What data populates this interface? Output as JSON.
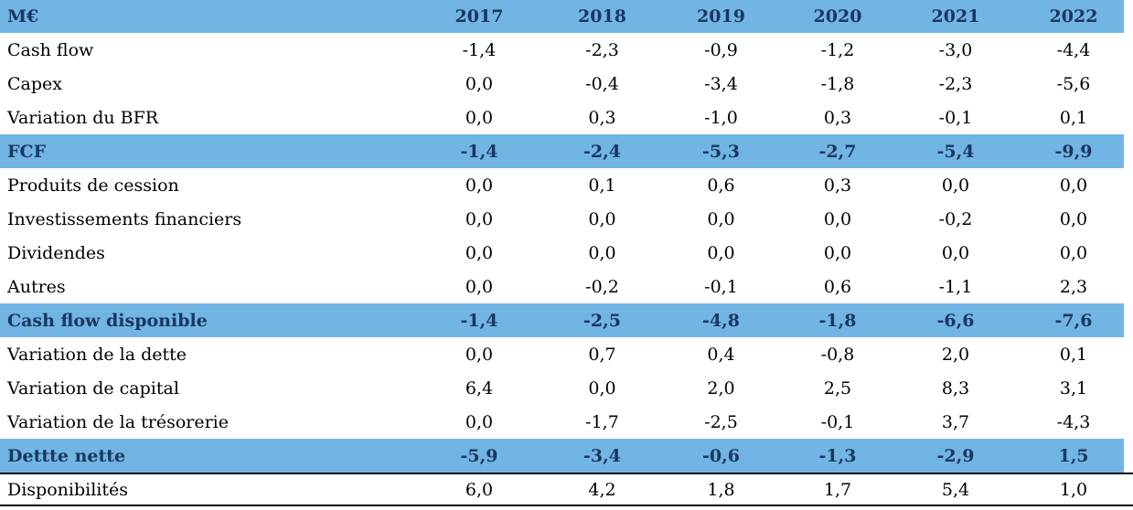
{
  "colors": {
    "band": "#70b5e3",
    "band_text": "#1c3661",
    "rule": "#000000"
  },
  "table": {
    "unit_header": "M€",
    "years": [
      "2017",
      "2018",
      "2019",
      "2020",
      "2021",
      "2022"
    ],
    "rows": [
      {
        "label": "Cash flow",
        "values": [
          "-1,4",
          "-2,3",
          "-0,9",
          "-1,2",
          "-3,0",
          "-4,4"
        ]
      },
      {
        "label": "Capex",
        "values": [
          "0,0",
          "-0,4",
          "-3,4",
          "-1,8",
          "-2,3",
          "-5,6"
        ]
      },
      {
        "label": "Variation du BFR",
        "values": [
          "0,0",
          "0,3",
          "-1,0",
          "0,3",
          "-0,1",
          "0,1"
        ]
      },
      {
        "label": "FCF",
        "values": [
          "-1,4",
          "-2,4",
          "-5,3",
          "-2,7",
          "-5,4",
          "-9,9"
        ]
      },
      {
        "label": "Produits de cession",
        "values": [
          "0,0",
          "0,1",
          "0,6",
          "0,3",
          "0,0",
          "0,0"
        ]
      },
      {
        "label": "Investissements financiers",
        "values": [
          "0,0",
          "0,0",
          "0,0",
          "0,0",
          "-0,2",
          "0,0"
        ]
      },
      {
        "label": "Dividendes",
        "values": [
          "0,0",
          "0,0",
          "0,0",
          "0,0",
          "0,0",
          "0,0"
        ]
      },
      {
        "label": "Autres",
        "values": [
          "0,0",
          "-0,2",
          "-0,1",
          "0,6",
          "-1,1",
          "2,3"
        ]
      },
      {
        "label": "Cash flow disponible",
        "values": [
          "-1,4",
          "-2,5",
          "-4,8",
          "-1,8",
          "-6,6",
          "-7,6"
        ]
      },
      {
        "label": "Variation de la dette",
        "values": [
          "0,0",
          "0,7",
          "0,4",
          "-0,8",
          "2,0",
          "0,1"
        ]
      },
      {
        "label": "Variation de capital",
        "values": [
          "6,4",
          "0,0",
          "2,0",
          "2,5",
          "8,3",
          "3,1"
        ]
      },
      {
        "label": "Variation de la trésorerie",
        "values": [
          "0,0",
          "-1,7",
          "-2,5",
          "-0,1",
          "3,7",
          "-4,3"
        ]
      },
      {
        "label": "Dettte nette",
        "values": [
          "-5,9",
          "-3,4",
          "-0,6",
          "-1,3",
          "-2,9",
          "1,5"
        ]
      },
      {
        "label": "Disponibilités",
        "values": [
          "6,0",
          "4,2",
          "1,8",
          "1,7",
          "5,4",
          "1,0"
        ]
      }
    ]
  }
}
